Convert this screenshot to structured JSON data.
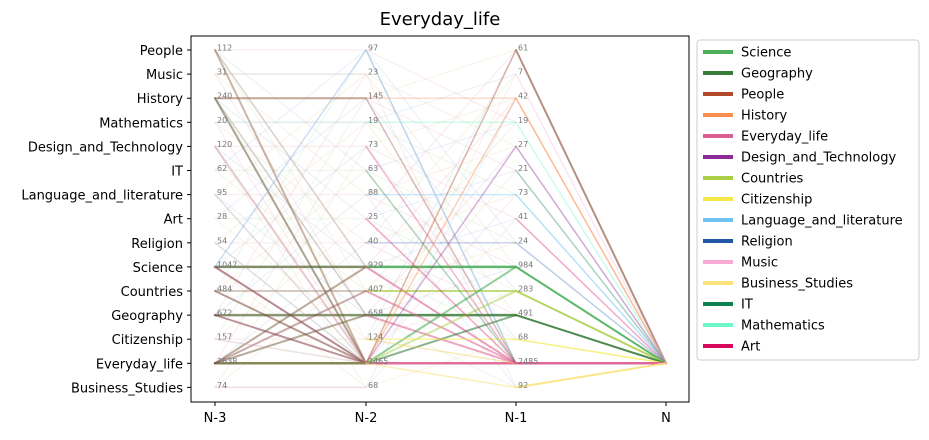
{
  "chart_data": {
    "type": "line",
    "title": "Everyday_life",
    "x": [
      "N-3",
      "N-2",
      "N-1",
      "N"
    ],
    "categories": [
      "People",
      "Music",
      "History",
      "Mathematics",
      "Design_and_Technology",
      "IT",
      "Language_and_literature",
      "Art",
      "Religion",
      "Science",
      "Countries",
      "Geography",
      "Citizenship",
      "Everyday_life",
      "Business_Studies"
    ],
    "counts": {
      "N-3": {
        "People": "112",
        "Music": "31",
        "History": "240",
        "Mathematics": "20",
        "Design_and_Technology": "120",
        "IT": "62",
        "Language_and_literature": "95",
        "Art": "28",
        "Religion": "54",
        "Science": "1047",
        "Countries": "484",
        "Geography": "672",
        "Citizenship": "157",
        "Everyday_life": "2638",
        "Business_Studies": "74"
      },
      "N-2": {
        "People": "97",
        "Music": "23",
        "History": "145",
        "Mathematics": "19",
        "Design_and_Technology": "73",
        "IT": "63",
        "Language_and_literature": "88",
        "Art": "25",
        "Religion": "40",
        "Science": "929",
        "Countries": "407",
        "Geography": "658",
        "Citizenship": "124",
        "Everyday_life": "2465",
        "Business_Studies": "68"
      },
      "N-1": {
        "People": "61",
        "Music": "7",
        "History": "42",
        "Mathematics": "19",
        "Design_and_Technology": "27",
        "IT": "21",
        "Language_and_literature": "73",
        "Art": "41",
        "Religion": "24",
        "Science": "984",
        "Countries": "283",
        "Geography": "491",
        "Citizenship": "68",
        "Everyday_life": "2485",
        "Business_Studies": "92"
      }
    },
    "legend": {
      "placement": "outside-right",
      "entries": [
        {
          "name": "Science",
          "color": "#4daf5a"
        },
        {
          "name": "Geography",
          "color": "#3a7d3a"
        },
        {
          "name": "People",
          "color": "#b04a2a"
        },
        {
          "name": "History",
          "color": "#f98c50"
        },
        {
          "name": "Everyday_life",
          "color": "#dd5f91"
        },
        {
          "name": "Design_and_Technology",
          "color": "#8a2b98"
        },
        {
          "name": "Countries",
          "color": "#a9cf46"
        },
        {
          "name": "Citizenship",
          "color": "#f5e94a"
        },
        {
          "name": "Language_and_literature",
          "color": "#6fc3f3"
        },
        {
          "name": "Religion",
          "color": "#2358a8"
        },
        {
          "name": "Music",
          "color": "#f9a9d6"
        },
        {
          "name": "Business_Studies",
          "color": "#fbe27c"
        },
        {
          "name": "IT",
          "color": "#0f8050"
        },
        {
          "name": "Mathematics",
          "color": "#6ef5c9"
        },
        {
          "name": "Art",
          "color": "#d6095f"
        }
      ]
    },
    "flows": [
      {
        "from": "History",
        "to": "History",
        "stage": 0,
        "color": "#8b5a3a",
        "alpha": 0.5,
        "weight": 2
      },
      {
        "from": "People",
        "to": "Everyday_life",
        "stage": 0,
        "color": "#8b5a3a",
        "alpha": 0.45,
        "weight": 2
      },
      {
        "from": "History",
        "to": "Everyday_life",
        "stage": 0,
        "color": "#6b5a3a",
        "alpha": 0.55,
        "weight": 2
      },
      {
        "from": "Science",
        "to": "Science",
        "stage": 0,
        "color": "#5a6b3a",
        "alpha": 0.75,
        "weight": 2.5
      },
      {
        "from": "Science",
        "to": "Everyday_life",
        "stage": 0,
        "color": "#8b3a4a",
        "alpha": 0.6,
        "weight": 2
      },
      {
        "from": "Geography",
        "to": "Geography",
        "stage": 0,
        "color": "#5a6b3a",
        "alpha": 0.7,
        "weight": 2.5
      },
      {
        "from": "Geography",
        "to": "Everyday_life",
        "stage": 0,
        "color": "#8b3a4a",
        "alpha": 0.55,
        "weight": 2
      },
      {
        "from": "Countries",
        "to": "Everyday_life",
        "stage": 0,
        "color": "#7b4a3a",
        "alpha": 0.55,
        "weight": 2
      },
      {
        "from": "Everyday_life",
        "to": "Everyday_life",
        "stage": 0,
        "color": "#6b6b2a",
        "alpha": 0.8,
        "weight": 2.5
      },
      {
        "from": "Everyday_life",
        "to": "Science",
        "stage": 0,
        "color": "#7b5a3a",
        "alpha": 0.5,
        "weight": 2
      },
      {
        "from": "Everyday_life",
        "to": "Geography",
        "stage": 0,
        "color": "#6b5a3a",
        "alpha": 0.5,
        "weight": 2
      },
      {
        "from": "Everyday_life",
        "to": "Countries",
        "stage": 0,
        "color": "#8b4a4a",
        "alpha": 0.45,
        "weight": 2
      },
      {
        "from": "Design_and_Technology",
        "to": "Everyday_life",
        "stage": 0,
        "color": "#c87a8a",
        "alpha": 0.4,
        "weight": 2
      },
      {
        "from": "People",
        "to": "Science",
        "stage": 0,
        "color": "#8b6a5a",
        "alpha": 0.3,
        "weight": 1.5
      },
      {
        "from": "History",
        "to": "Geography",
        "stage": 0,
        "color": "#6b6a5a",
        "alpha": 0.3,
        "weight": 1.5
      },
      {
        "from": "Citizenship",
        "to": "Everyday_life",
        "stage": 0,
        "color": "#c89aa0",
        "alpha": 0.3,
        "weight": 1.5
      },
      {
        "from": "Countries",
        "to": "Countries",
        "stage": 0,
        "color": "#7b6a4a",
        "alpha": 0.4,
        "weight": 1.5
      },
      {
        "from": "Language_and_literature",
        "to": "Everyday_life",
        "stage": 0,
        "color": "#b08a8a",
        "alpha": 0.3,
        "weight": 1.5
      },
      {
        "from": "Religion",
        "to": "Everyday_life",
        "stage": 0,
        "color": "#b0a0a0",
        "alpha": 0.25,
        "weight": 1.5
      },
      {
        "from": "Business_Studies",
        "to": "Business_Studies",
        "stage": 0,
        "color": "#e8c0c8",
        "alpha": 0.35,
        "weight": 1.5
      },
      {
        "from": "Mathematics",
        "to": "Mathematics",
        "stage": 0,
        "color": "#c0d8e8",
        "alpha": 0.35,
        "weight": 1.5
      },
      {
        "from": "Music",
        "to": "Music",
        "stage": 0,
        "color": "#e0c0c8",
        "alpha": 0.3,
        "weight": 1.5
      },
      {
        "from": "Science",
        "to": "People",
        "stage": 0,
        "color": "#8fb8e8",
        "alpha": 0.45,
        "weight": 1.5
      },
      {
        "from": "People",
        "to": "Everyday_life",
        "stage": 1,
        "color": "#8fb8e8",
        "alpha": 0.55,
        "weight": 1.5
      },
      {
        "from": "History",
        "to": "History",
        "stage": 1,
        "color": "#f0a880",
        "alpha": 0.4,
        "weight": 1.5
      },
      {
        "from": "History",
        "to": "Everyday_life",
        "stage": 1,
        "color": "#b06a6a",
        "alpha": 0.45,
        "weight": 1.5
      },
      {
        "from": "Science",
        "to": "Science",
        "stage": 1,
        "color": "#4daf5a",
        "alpha": 0.9,
        "weight": 2.5
      },
      {
        "from": "Science",
        "to": "Everyday_life",
        "stage": 1,
        "color": "#dd5f91",
        "alpha": 0.6,
        "weight": 2
      },
      {
        "from": "Geography",
        "to": "Geography",
        "stage": 1,
        "color": "#3a7d3a",
        "alpha": 0.85,
        "weight": 2.5
      },
      {
        "from": "Geography",
        "to": "Everyday_life",
        "stage": 1,
        "color": "#dd5f91",
        "alpha": 0.55,
        "weight": 2
      },
      {
        "from": "Countries",
        "to": "Countries",
        "stage": 1,
        "color": "#a9cf46",
        "alpha": 0.7,
        "weight": 2
      },
      {
        "from": "Countries",
        "to": "Everyday_life",
        "stage": 1,
        "color": "#dd5f91",
        "alpha": 0.5,
        "weight": 2
      },
      {
        "from": "Everyday_life",
        "to": "Everyday_life",
        "stage": 1,
        "color": "#dd5f91",
        "alpha": 0.9,
        "weight": 2.5
      },
      {
        "from": "Everyday_life",
        "to": "Science",
        "stage": 1,
        "color": "#4daf5a",
        "alpha": 0.6,
        "weight": 2
      },
      {
        "from": "Everyday_life",
        "to": "Geography",
        "stage": 1,
        "color": "#3a7d3a",
        "alpha": 0.55,
        "weight": 2
      },
      {
        "from": "Everyday_life",
        "to": "Countries",
        "stage": 1,
        "color": "#a9cf46",
        "alpha": 0.5,
        "weight": 2
      },
      {
        "from": "Design_and_Technology",
        "to": "Everyday_life",
        "stage": 1,
        "color": "#dd5f91",
        "alpha": 0.45,
        "weight": 1.5
      },
      {
        "from": "Citizenship",
        "to": "Citizenship",
        "stage": 1,
        "color": "#f5e94a",
        "alpha": 0.5,
        "weight": 1.5
      },
      {
        "from": "Citizenship",
        "to": "Everyday_life",
        "stage": 1,
        "color": "#f0d060",
        "alpha": 0.45,
        "weight": 1.5
      },
      {
        "from": "Language_and_literature",
        "to": "Language_and_literature",
        "stage": 1,
        "color": "#6fc3f3",
        "alpha": 0.35,
        "weight": 1.5
      },
      {
        "from": "Art",
        "to": "Everyday_life",
        "stage": 1,
        "color": "#d6095f",
        "alpha": 0.35,
        "weight": 1.5
      },
      {
        "from": "Religion",
        "to": "Religion",
        "stage": 1,
        "color": "#2358a8",
        "alpha": 0.25,
        "weight": 1.5
      },
      {
        "from": "Everyday_life",
        "to": "History",
        "stage": 1,
        "color": "#f98c50",
        "alpha": 0.4,
        "weight": 1.5
      },
      {
        "from": "Everyday_life",
        "to": "Design_and_Technology",
        "stage": 1,
        "color": "#8a2b98",
        "alpha": 0.35,
        "weight": 1.5
      },
      {
        "from": "Everyday_life",
        "to": "People",
        "stage": 1,
        "color": "#b04a2a",
        "alpha": 0.4,
        "weight": 1.5
      },
      {
        "from": "Mathematics",
        "to": "Mathematics",
        "stage": 1,
        "color": "#6ef5c9",
        "alpha": 0.35,
        "weight": 1.5
      },
      {
        "from": "Everyday_life",
        "to": "Business_Studies",
        "stage": 1,
        "color": "#fbe27c",
        "alpha": 0.55,
        "weight": 1.5
      },
      {
        "from": "IT",
        "to": "Everyday_life",
        "stage": 1,
        "color": "#0f8050",
        "alpha": 0.3,
        "weight": 1.5
      },
      {
        "from": "People",
        "to": "N",
        "stage": 2,
        "color": "#b08a7a",
        "alpha": 0.95,
        "weight": 2
      },
      {
        "from": "History",
        "to": "N",
        "stage": 2,
        "color": "#f98c50",
        "alpha": 0.6,
        "weight": 1.5
      },
      {
        "from": "Mathematics",
        "to": "N",
        "stage": 2,
        "color": "#6ef5c9",
        "alpha": 0.35,
        "weight": 1.5
      },
      {
        "from": "Design_and_Technology",
        "to": "N",
        "stage": 2,
        "color": "#8a2b98",
        "alpha": 0.4,
        "weight": 1.5
      },
      {
        "from": "IT",
        "to": "N",
        "stage": 2,
        "color": "#0f8050",
        "alpha": 0.35,
        "weight": 1.5
      },
      {
        "from": "Language_and_literature",
        "to": "N",
        "stage": 2,
        "color": "#6fc3f3",
        "alpha": 0.5,
        "weight": 1.5
      },
      {
        "from": "Art",
        "to": "N",
        "stage": 2,
        "color": "#d6095f",
        "alpha": 0.35,
        "weight": 1.5
      },
      {
        "from": "Religion",
        "to": "N",
        "stage": 2,
        "color": "#2358a8",
        "alpha": 0.3,
        "weight": 1.5
      },
      {
        "from": "Science",
        "to": "N",
        "stage": 2,
        "color": "#4daf5a",
        "alpha": 0.9,
        "weight": 2
      },
      {
        "from": "Countries",
        "to": "N",
        "stage": 2,
        "color": "#a9cf46",
        "alpha": 0.85,
        "weight": 2
      },
      {
        "from": "Geography",
        "to": "N",
        "stage": 2,
        "color": "#3a7d3a",
        "alpha": 0.9,
        "weight": 2
      },
      {
        "from": "Citizenship",
        "to": "N",
        "stage": 2,
        "color": "#f5e94a",
        "alpha": 0.7,
        "weight": 1.5
      },
      {
        "from": "Everyday_life",
        "to": "N",
        "stage": 2,
        "color": "#dd5f91",
        "alpha": 0.95,
        "weight": 2.5
      },
      {
        "from": "Business_Studies",
        "to": "N",
        "stage": 2,
        "color": "#fbe27c",
        "alpha": 0.9,
        "weight": 2
      },
      {
        "from": "Music",
        "to": "N",
        "stage": 2,
        "color": "#f9a9d6",
        "alpha": 0.3,
        "weight": 1.5
      }
    ]
  }
}
